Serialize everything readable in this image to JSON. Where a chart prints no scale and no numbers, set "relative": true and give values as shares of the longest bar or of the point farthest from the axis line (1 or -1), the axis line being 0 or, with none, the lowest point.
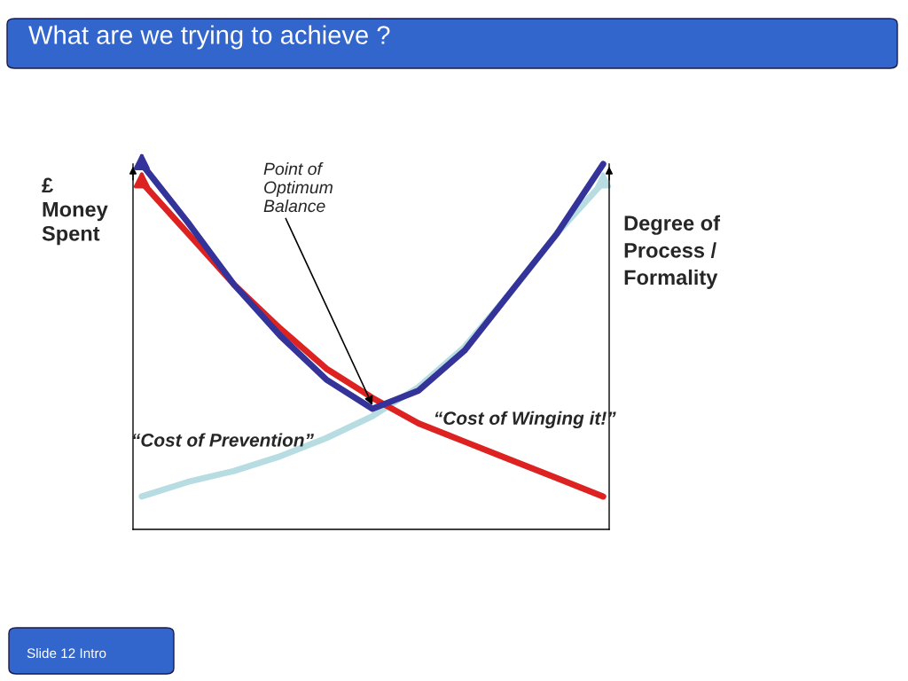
{
  "chart_data": {
    "type": "line",
    "title": "What are we trying to achieve ?",
    "ylabel": "£\nMoney\nSpent",
    "xlabel": "Degree of\nProcess /\nFormality",
    "categories": [
      null,
      null,
      null,
      null,
      null,
      null,
      null,
      null,
      null,
      null,
      null
    ],
    "relative": true,
    "legend": false,
    "grid": false,
    "marker": "none",
    "line_style": "solid",
    "series": [
      {
        "name": "“Cost of Prevention”",
        "color": "#b7dde3",
        "values": [
          0.09,
          0.13,
          0.16,
          0.2,
          0.25,
          0.31,
          0.39,
          0.5,
          0.65,
          0.81,
          0.95
        ]
      },
      {
        "name": "“Cost of Winging it!”",
        "color": "#dd2222",
        "values": [
          0.95,
          0.81,
          0.67,
          0.55,
          0.44,
          0.36,
          0.29,
          0.24,
          0.19,
          0.14,
          0.09
        ]
      },
      {
        "color": "#333399",
        "values": [
          1,
          0.84,
          0.67,
          0.53,
          0.41,
          0.33,
          0.38,
          0.49,
          0.65,
          0.81,
          1
        ]
      }
    ],
    "annotations": [
      "Point of\nOptimum\nBalance",
      "Slide 12 Intro"
    ]
  }
}
